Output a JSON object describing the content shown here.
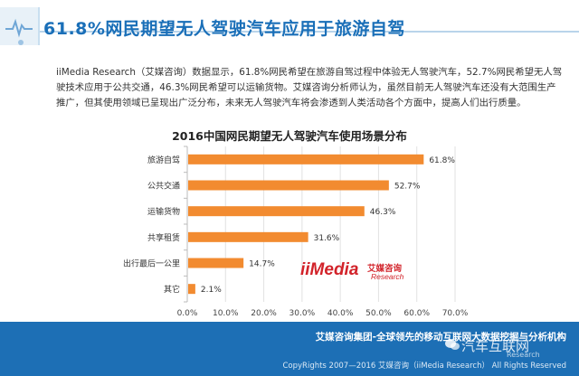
{
  "header": {
    "title": "61.8%网民期望无人驾驶汽车应用于旅游自驾"
  },
  "paragraph": "iiMedia Research（艾媒咨询）数据显示，61.8%网民希望在旅游自驾过程中体验无人驾驶汽车，52.7%网民希望无人驾驶技术应用于公共交通，46.3%网民希望可以运输货物。艾媒咨询分析师认为，虽然目前无人驾驶汽车还没有大范围生产推广，但其使用领域已呈现出广泛分布，未来无人驾驶汽车将会渗透到人类活动各个方面中，提高人们出行质量。",
  "logo": {
    "main": "iiMedia",
    "cn": "艾媒咨询",
    "en": "Research"
  },
  "footer": {
    "tagline": "艾媒咨询集团-全球领先的移动互联网大数据挖掘与分析机构",
    "copyright": "CopyRights 2007—2016 艾媒咨询（iiMedia Research） All Rights Reserved",
    "watermark": "汽车互联网",
    "watermark_source": "Research"
  },
  "colors": {
    "bar": "#f28b30",
    "title_blue": "#1a6fb8",
    "footer": "#1d6fb5"
  },
  "chart_data": {
    "type": "bar",
    "orientation": "horizontal",
    "title": "2016中国网民期望无人驾驶汽车使用场景分布",
    "categories": [
      "旅游自驾",
      "公共交通",
      "运输货物",
      "共享租赁",
      "出行最后一公里",
      "其它"
    ],
    "values": [
      61.8,
      52.7,
      46.3,
      31.6,
      14.7,
      2.1
    ],
    "value_labels": [
      "61.8%",
      "52.7%",
      "46.3%",
      "31.6%",
      "14.7%",
      "2.1%"
    ],
    "xlim": [
      0,
      70
    ],
    "xticks": [
      "0.0%",
      "10.0%",
      "20.0%",
      "30.0%",
      "40.0%",
      "50.0%",
      "60.0%",
      "70.0%"
    ],
    "grid": true,
    "xlabel": "",
    "ylabel": ""
  }
}
